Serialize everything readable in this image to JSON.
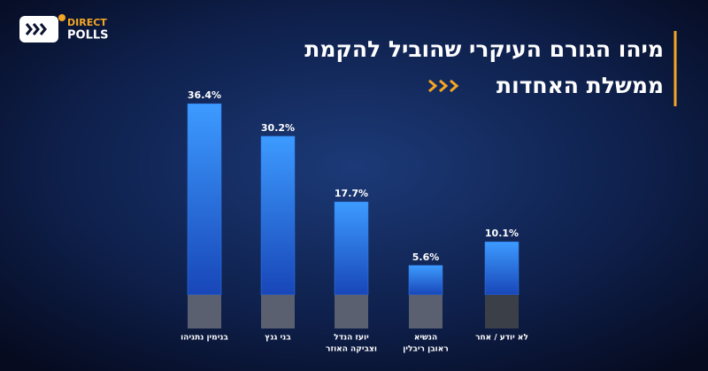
{
  "logo": {
    "line1": "DIRECT",
    "line2": "POLLS"
  },
  "chart_data": {
    "type": "bar",
    "title": [
      "מיהו הגורם העיקרי שהוביל להקמת",
      "ממשלת האחדות"
    ],
    "categories": [
      [
        "בנימין נתניהו"
      ],
      [
        "בני גנץ"
      ],
      [
        "יועז הנדל",
        "וצביקה האוזר"
      ],
      [
        "הנשיא",
        "ראובן ריבלין"
      ],
      [
        "לא יודע / אחר"
      ]
    ],
    "values": [
      36.4,
      30.2,
      17.7,
      5.6,
      10.1
    ],
    "value_labels": [
      "36.4%",
      "30.2%",
      "17.7%",
      "5.6%",
      "10.1%"
    ],
    "color": "#2f7ff0"
  }
}
